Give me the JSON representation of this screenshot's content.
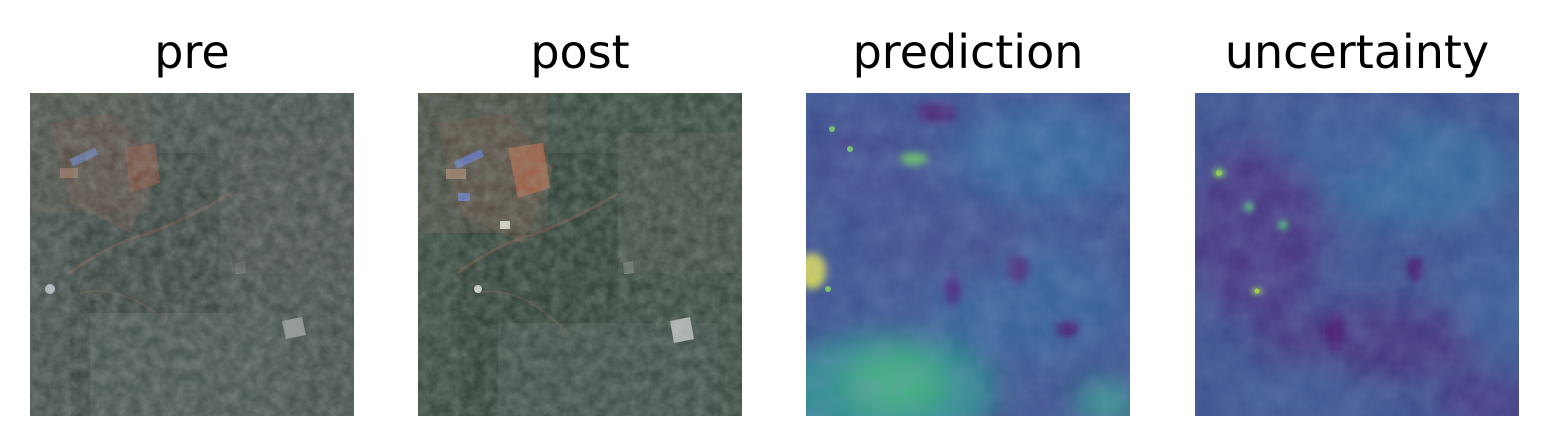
{
  "figure": {
    "panels": [
      {
        "title": "pre"
      },
      {
        "title": "post"
      },
      {
        "title": "prediction"
      },
      {
        "title": "uncertainty"
      }
    ]
  }
}
